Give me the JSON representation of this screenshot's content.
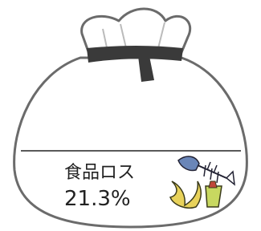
{
  "label": "食品ロス",
  "value": "21.3%"
}
